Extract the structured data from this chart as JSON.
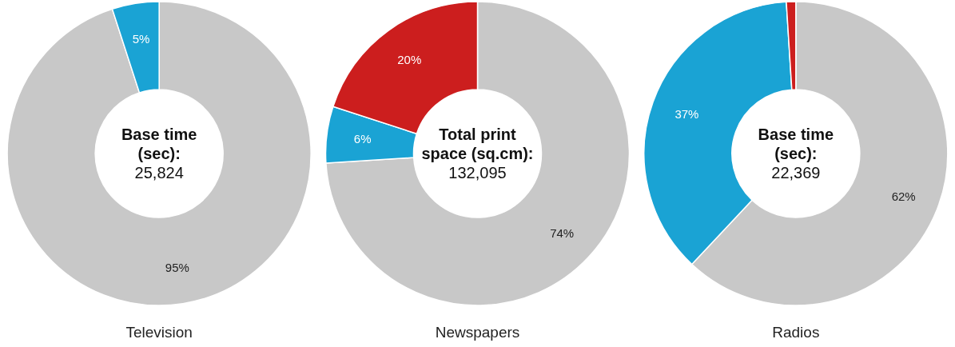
{
  "chart_data": [
    {
      "type": "donut",
      "title": "Base time (sec):",
      "subtitle": "25,824",
      "xlabel": "Television",
      "categories": [
        null,
        null
      ],
      "values": [
        95,
        5
      ],
      "colors": [
        "#c8c8c8",
        "#1aa3d4"
      ],
      "value_labels": [
        "95%",
        "5%"
      ]
    },
    {
      "type": "donut",
      "title": "Total print space (sq.cm):",
      "subtitle": "132,095",
      "xlabel": "Newspapers",
      "categories": [
        null,
        null,
        null
      ],
      "values": [
        74,
        6,
        20
      ],
      "colors": [
        "#c8c8c8",
        "#1aa3d4",
        "#cc1e1e"
      ],
      "value_labels": [
        "74%",
        "6%",
        "20%"
      ]
    },
    {
      "type": "donut",
      "title": "Base time (sec):",
      "subtitle": "22,369",
      "xlabel": "Radios",
      "categories": [
        null,
        null,
        null
      ],
      "values": [
        62,
        37,
        1
      ],
      "colors": [
        "#c8c8c8",
        "#1aa3d4",
        "#cc1e1e"
      ],
      "value_labels": [
        "62%",
        "37%",
        null
      ]
    }
  ]
}
